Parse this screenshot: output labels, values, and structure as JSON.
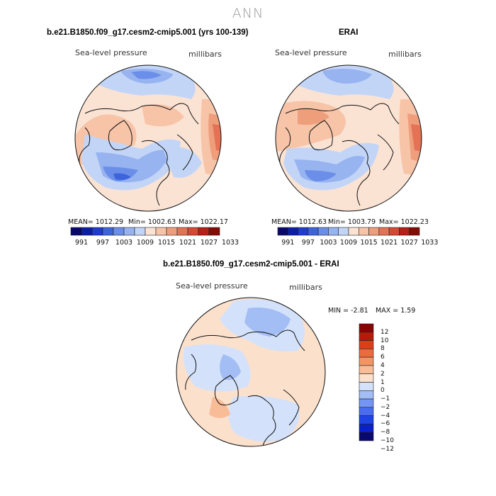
{
  "title": "ANN",
  "colors": {
    "pressure_scale": [
      "#08086e",
      "#0d1ea6",
      "#1f3ccc",
      "#3d64dd",
      "#6b8fe8",
      "#97b3f0",
      "#c3d5f7",
      "#fbe3d4",
      "#f7c4a8",
      "#ef9e7c",
      "#e47255",
      "#d44a33",
      "#b52018",
      "#870a05"
    ],
    "diff_scale": [
      "#08086e",
      "#0a20c8",
      "#2043e6",
      "#4a6cf0",
      "#7595f2",
      "#a3bdf5",
      "#d3e2fa",
      "#fbe0cc",
      "#f8bc97",
      "#f39465",
      "#ec6a3c",
      "#dc3e1a",
      "#b81a0a",
      "#870505"
    ]
  },
  "panel_left": {
    "title": "b.e21.B1850.f09_g17.cesm2-cmip5.001 (yrs 100-139)",
    "variable": "Sea-level pressure",
    "units": "millibars",
    "stats": {
      "mean": "MEAN= 1012.29",
      "min": "Min= 1002.63",
      "max": "Max= 1022.17"
    },
    "colorbar_ticks": [
      "991",
      "997",
      "1003",
      "1009",
      "1015",
      "1021",
      "1027",
      "1033"
    ]
  },
  "panel_right": {
    "title": "ERAI",
    "variable": "Sea-level pressure",
    "units": "millibars",
    "stats": {
      "mean": "MEAN= 1012.63",
      "min": "Min= 1003.79",
      "max": "Max= 1022.23"
    },
    "colorbar_ticks": [
      "991",
      "997",
      "1003",
      "1009",
      "1015",
      "1021",
      "1027",
      "1033"
    ]
  },
  "panel_diff": {
    "title": "b.e21.B1850.f09_g17.cesm2-cmip5.001 - ERAI",
    "variable": "Sea-level pressure",
    "units": "millibars",
    "stats": {
      "min": "MIN =   -2.81",
      "max": "MAX =    1.59"
    },
    "colorbar_ticks": [
      "12",
      "10",
      "8",
      "6",
      "4",
      "2",
      "1",
      "0",
      "-1",
      "-2",
      "-4",
      "-6",
      "-8",
      "-10",
      "-12"
    ]
  }
}
